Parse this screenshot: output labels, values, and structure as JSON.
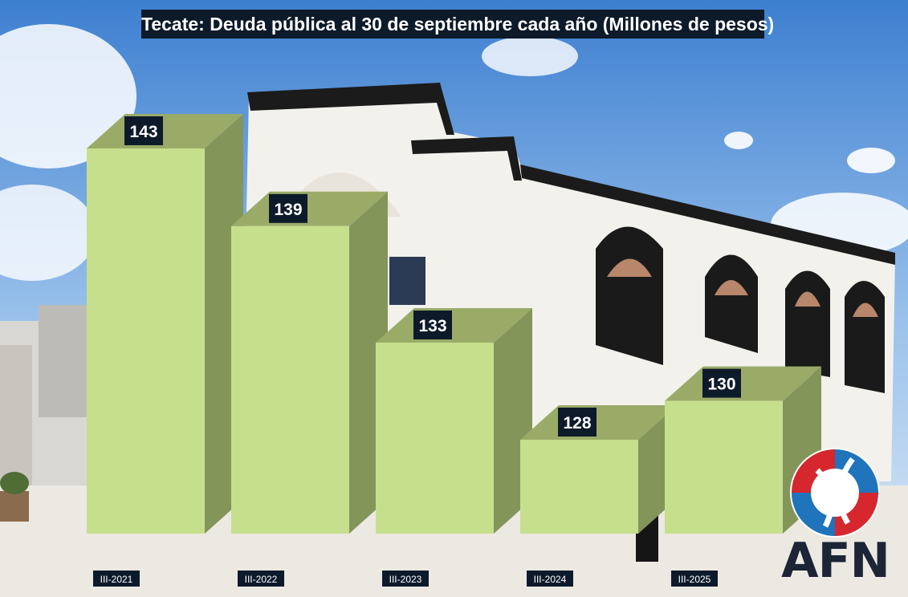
{
  "chart_data": {
    "type": "bar",
    "title": "Tecate: Deuda pública al 30 de septiembre cada año (Millones de pesos)",
    "categories": [
      "III-2021",
      "III-2022",
      "III-2023",
      "III-2024",
      "III-2025"
    ],
    "values": [
      143,
      139,
      133,
      128,
      130
    ],
    "xlabel": "",
    "ylabel": "",
    "ylim": [
      115,
      145
    ],
    "grid": false,
    "legend": "none",
    "bar_style": "3d-box",
    "colors": {
      "bar_front": "#c6df8c",
      "bar_top": "#9aab68",
      "bar_side": "#84955a",
      "label_bg": "#0d1a2a",
      "label_text": "#ffffff"
    }
  },
  "logo": {
    "text": "AFN",
    "colors": {
      "red": "#d6262e",
      "blue": "#1f74bb",
      "dark": "#1c2536"
    }
  }
}
